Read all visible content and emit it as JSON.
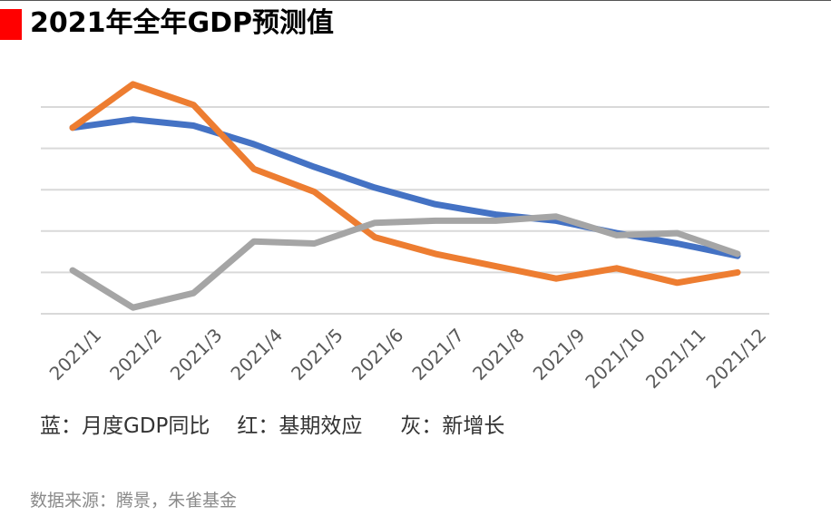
{
  "title": "2021年全年GDP预测值",
  "legend": {
    "blue": "蓝：月度GDP同比",
    "red": "红：基期效应",
    "gray": "灰：新增长"
  },
  "source": "数据来源：腾景，朱雀基金",
  "colors": {
    "accent": "#ff0000",
    "blue": "#4472c4",
    "orange": "#ed7d31",
    "gray": "#a5a5a5",
    "grid": "#d9d9d9"
  },
  "chart_data": {
    "type": "line",
    "categories": [
      "2021/1",
      "2021/2",
      "2021/3",
      "2021/4",
      "2021/5",
      "2021/6",
      "2021/7",
      "2021/8",
      "2021/9",
      "2021/10",
      "2021/11",
      "2021/12"
    ],
    "ylim": [
      0,
      5
    ],
    "grid": true,
    "series": [
      {
        "color": "blue",
        "values": [
          4.5,
          4.7,
          4.55,
          4.1,
          3.55,
          3.05,
          2.65,
          2.4,
          2.25,
          1.95,
          1.7,
          1.4
        ]
      },
      {
        "color": "orange",
        "values": [
          4.5,
          5.55,
          5.05,
          3.5,
          2.95,
          1.85,
          1.45,
          1.15,
          0.85,
          1.1,
          0.75,
          1.0
        ]
      },
      {
        "color": "gray",
        "values": [
          1.05,
          0.15,
          0.5,
          1.75,
          1.7,
          2.2,
          2.25,
          2.25,
          2.35,
          1.9,
          1.95,
          1.45
        ]
      }
    ]
  }
}
